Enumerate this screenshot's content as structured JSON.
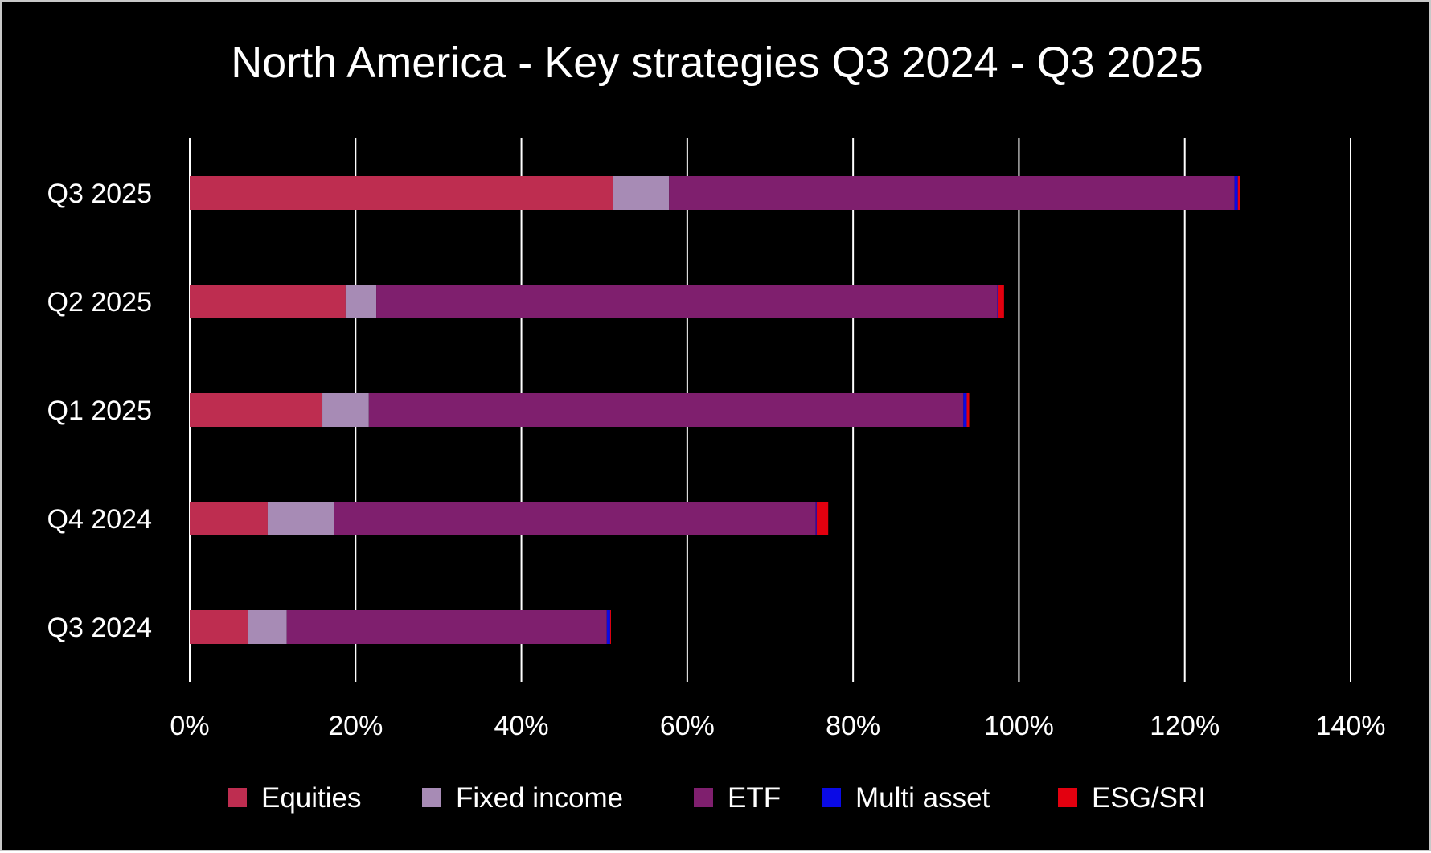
{
  "chart_data": {
    "type": "bar",
    "orientation": "horizontal",
    "stacked": true,
    "title": "North America - Key strategies Q3 2024 - Q3 2025",
    "categories": [
      "Q3 2025",
      "Q2 2025",
      "Q1 2025",
      "Q4 2024",
      "Q3 2024"
    ],
    "series": [
      {
        "name": "Equities",
        "color": "#BE2D50",
        "values": [
          51,
          18.8,
          16,
          9.4,
          7
        ]
      },
      {
        "name": "Fixed income",
        "color": "#A78BB5",
        "values": [
          6.8,
          3.7,
          5.6,
          8,
          4.7
        ]
      },
      {
        "name": "ETF",
        "color": "#7F1F6E",
        "values": [
          68.2,
          74.9,
          71.7,
          58.1,
          38.6
        ]
      },
      {
        "name": "Multi asset",
        "color": "#0A0AE6",
        "values": [
          0.4,
          0.1,
          0.4,
          0.1,
          0.4
        ]
      },
      {
        "name": "ESG/SRI",
        "color": "#E3000F",
        "values": [
          0.3,
          0.7,
          0.3,
          1.4,
          0.1
        ]
      }
    ],
    "xaxis": {
      "min": 0,
      "max": 140,
      "step": 20,
      "tick_labels": [
        "0%",
        "20%",
        "40%",
        "60%",
        "80%",
        "100%",
        "120%",
        "140%"
      ]
    },
    "grid": "vertical",
    "legend_position": "bottom",
    "background": "#000000",
    "text_color": "#FFFFFF",
    "grid_color": "#FFFFFF"
  }
}
